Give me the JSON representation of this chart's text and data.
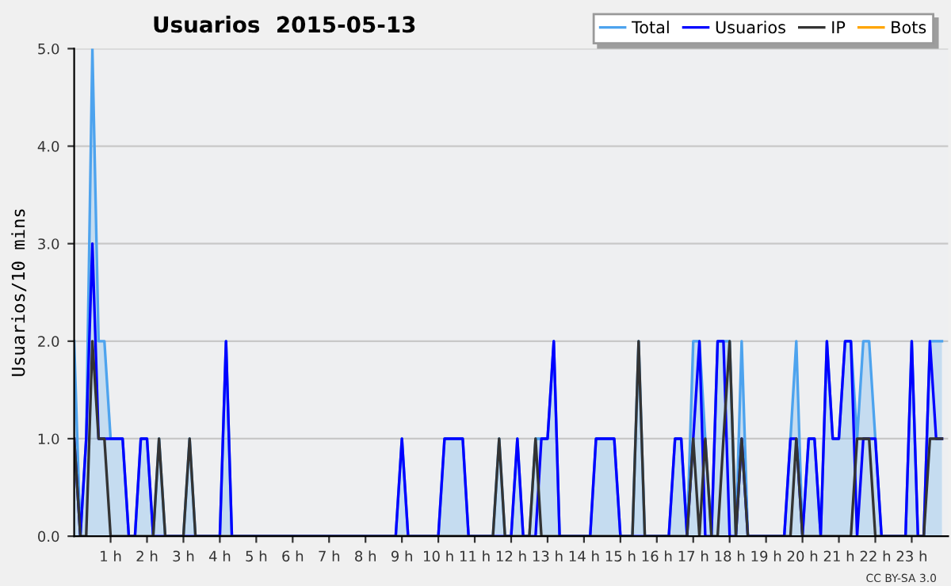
{
  "chart_data": {
    "type": "line",
    "title": "Usuarios  2015-05-13",
    "ylabel": "Usuarios/10 mins",
    "annotations": [
      "CC BY-SA 3.0"
    ],
    "x": [
      0,
      0.17,
      0.33,
      0.5,
      0.67,
      0.83,
      1,
      1.17,
      1.33,
      1.5,
      1.67,
      1.83,
      2,
      2.17,
      2.33,
      2.5,
      2.67,
      2.83,
      3,
      3.17,
      3.33,
      3.5,
      3.67,
      3.83,
      4,
      4.17,
      4.33,
      4.5,
      4.67,
      4.83,
      5,
      5.17,
      5.33,
      5.5,
      5.67,
      5.83,
      6,
      6.17,
      6.33,
      6.5,
      6.67,
      6.83,
      7,
      7.17,
      7.33,
      7.5,
      7.67,
      7.83,
      8,
      8.17,
      8.33,
      8.5,
      8.67,
      8.83,
      9,
      9.17,
      9.33,
      9.5,
      9.67,
      9.83,
      10,
      10.17,
      10.33,
      10.5,
      10.67,
      10.83,
      11,
      11.17,
      11.33,
      11.5,
      11.67,
      11.83,
      12,
      12.17,
      12.33,
      12.5,
      12.67,
      12.83,
      13,
      13.17,
      13.33,
      13.5,
      13.67,
      13.83,
      14,
      14.17,
      14.33,
      14.5,
      14.67,
      14.83,
      15,
      15.17,
      15.33,
      15.5,
      15.67,
      15.83,
      16,
      16.17,
      16.33,
      16.5,
      16.67,
      16.83,
      17,
      17.17,
      17.33,
      17.5,
      17.67,
      17.83,
      18,
      18.17,
      18.33,
      18.5,
      18.67,
      18.83,
      19,
      19.17,
      19.33,
      19.5,
      19.67,
      19.83,
      20,
      20.17,
      20.33,
      20.5,
      20.67,
      20.83,
      21,
      21.17,
      21.33,
      21.5,
      21.67,
      21.83,
      22,
      22.17,
      22.33,
      22.5,
      22.67,
      22.83,
      23,
      23.17,
      23.33,
      23.5,
      23.67,
      23.83
    ],
    "series": [
      {
        "name": "Total",
        "type": "area",
        "color": "#4da3ee",
        "values": [
          2,
          0,
          1,
          5,
          2,
          2,
          1,
          1,
          1,
          0,
          0,
          1,
          1,
          0,
          1,
          0,
          0,
          0,
          0,
          1,
          0,
          0,
          0,
          0,
          0,
          2,
          0,
          0,
          0,
          0,
          0,
          0,
          0,
          0,
          0,
          0,
          0,
          0,
          0,
          0,
          0,
          0,
          0,
          0,
          0,
          0,
          0,
          0,
          0,
          0,
          0,
          0,
          0,
          0,
          1,
          0,
          0,
          0,
          0,
          0,
          0,
          1,
          1,
          1,
          1,
          0,
          0,
          0,
          0,
          0,
          1,
          0,
          0,
          1,
          0,
          0,
          1,
          1,
          1,
          2,
          0,
          0,
          0,
          0,
          0,
          0,
          1,
          1,
          1,
          1,
          0,
          0,
          0,
          2,
          0,
          0,
          0,
          0,
          0,
          1,
          1,
          0,
          2,
          2,
          1,
          0,
          2,
          2,
          2,
          0,
          2,
          0,
          0,
          0,
          0,
          0,
          0,
          0,
          1,
          2,
          0,
          1,
          1,
          0,
          2,
          1,
          1,
          2,
          2,
          1,
          2,
          2,
          1,
          0,
          0,
          0,
          0,
          0,
          2,
          0,
          0,
          2,
          2,
          2
        ]
      },
      {
        "name": "Usuarios",
        "color": "#0000ff",
        "values": [
          1,
          0,
          1,
          3,
          1,
          1,
          1,
          1,
          1,
          0,
          0,
          1,
          1,
          0,
          0,
          0,
          0,
          0,
          0,
          0,
          0,
          0,
          0,
          0,
          0,
          2,
          0,
          0,
          0,
          0,
          0,
          0,
          0,
          0,
          0,
          0,
          0,
          0,
          0,
          0,
          0,
          0,
          0,
          0,
          0,
          0,
          0,
          0,
          0,
          0,
          0,
          0,
          0,
          0,
          1,
          0,
          0,
          0,
          0,
          0,
          0,
          1,
          1,
          1,
          1,
          0,
          0,
          0,
          0,
          0,
          0,
          0,
          0,
          1,
          0,
          0,
          0,
          1,
          1,
          2,
          0,
          0,
          0,
          0,
          0,
          0,
          1,
          1,
          1,
          1,
          0,
          0,
          0,
          0,
          0,
          0,
          0,
          0,
          0,
          1,
          1,
          0,
          1,
          2,
          0,
          0,
          2,
          2,
          0,
          0,
          1,
          0,
          0,
          0,
          0,
          0,
          0,
          0,
          1,
          1,
          0,
          1,
          1,
          0,
          2,
          1,
          1,
          2,
          2,
          0,
          1,
          1,
          1,
          0,
          0,
          0,
          0,
          0,
          2,
          0,
          0,
          2,
          1,
          1
        ]
      },
      {
        "name": "IP",
        "color": "#333333",
        "values": [
          1,
          0,
          0,
          2,
          1,
          1,
          0,
          0,
          0,
          0,
          0,
          0,
          0,
          0,
          1,
          0,
          0,
          0,
          0,
          1,
          0,
          0,
          0,
          0,
          0,
          0,
          0,
          0,
          0,
          0,
          0,
          0,
          0,
          0,
          0,
          0,
          0,
          0,
          0,
          0,
          0,
          0,
          0,
          0,
          0,
          0,
          0,
          0,
          0,
          0,
          0,
          0,
          0,
          0,
          0,
          0,
          0,
          0,
          0,
          0,
          0,
          0,
          0,
          0,
          0,
          0,
          0,
          0,
          0,
          0,
          1,
          0,
          0,
          0,
          0,
          0,
          1,
          0,
          0,
          0,
          0,
          0,
          0,
          0,
          0,
          0,
          0,
          0,
          0,
          0,
          0,
          0,
          0,
          2,
          0,
          0,
          0,
          0,
          0,
          0,
          0,
          0,
          1,
          0,
          1,
          0,
          0,
          1,
          2,
          0,
          1,
          0,
          0,
          0,
          0,
          0,
          0,
          0,
          0,
          1,
          0,
          0,
          0,
          0,
          0,
          0,
          0,
          0,
          0,
          1,
          1,
          1,
          0,
          0,
          0,
          0,
          0,
          0,
          0,
          0,
          0,
          1,
          1,
          1
        ]
      },
      {
        "name": "Bots",
        "color": "#ffa500",
        "values": [
          null,
          null,
          null,
          null,
          null,
          null,
          null,
          null,
          null,
          null,
          null,
          null,
          null,
          null,
          null,
          null,
          null,
          null,
          null,
          null,
          null,
          null,
          null,
          null,
          null,
          null,
          null,
          null,
          null,
          null,
          null,
          null,
          null,
          null,
          null,
          null,
          null,
          null,
          null,
          null,
          null,
          null,
          null,
          null,
          null,
          null,
          null,
          null,
          null,
          null,
          null,
          null,
          null,
          null,
          null,
          null,
          null,
          null,
          null,
          null,
          null,
          null,
          null,
          null,
          null,
          null,
          null,
          null,
          null,
          null,
          null,
          null,
          null,
          null,
          null,
          null,
          null,
          null,
          null,
          null,
          null,
          null,
          null,
          null,
          null,
          null,
          null,
          null,
          null,
          null,
          null,
          null,
          null,
          null,
          null,
          null,
          null,
          null,
          null,
          null,
          null,
          null,
          null,
          null,
          null,
          null,
          null,
          null,
          null,
          null,
          null,
          null,
          null,
          null,
          null,
          null,
          null,
          null,
          null,
          null,
          null,
          null,
          null,
          null,
          null,
          null,
          null,
          null,
          null,
          null,
          null,
          null,
          null,
          null,
          null,
          null,
          null,
          null,
          null,
          null,
          null,
          null,
          null,
          null
        ]
      }
    ],
    "xlim": [
      0,
      24
    ],
    "xticks": [
      {
        "value": 1,
        "label": "1 h"
      },
      {
        "value": 2,
        "label": "2 h"
      },
      {
        "value": 3,
        "label": "3 h"
      },
      {
        "value": 4,
        "label": "4 h"
      },
      {
        "value": 5,
        "label": "5 h"
      },
      {
        "value": 6,
        "label": "6 h"
      },
      {
        "value": 7,
        "label": "7 h"
      },
      {
        "value": 8,
        "label": "8 h"
      },
      {
        "value": 9,
        "label": "9 h"
      },
      {
        "value": 10,
        "label": "10 h"
      },
      {
        "value": 11,
        "label": "11 h"
      },
      {
        "value": 12,
        "label": "12 h"
      },
      {
        "value": 13,
        "label": "13 h"
      },
      {
        "value": 14,
        "label": "14 h"
      },
      {
        "value": 15,
        "label": "15 h"
      },
      {
        "value": 16,
        "label": "16 h"
      },
      {
        "value": 17,
        "label": "17 h"
      },
      {
        "value": 18,
        "label": "18 h"
      },
      {
        "value": 19,
        "label": "19 h"
      },
      {
        "value": 20,
        "label": "20 h"
      },
      {
        "value": 21,
        "label": "21 h"
      },
      {
        "value": 22,
        "label": "22 h"
      },
      {
        "value": 23,
        "label": "23 h"
      }
    ],
    "ylim": [
      0,
      5
    ],
    "yticks": [
      {
        "value": 0,
        "label": "0.0"
      },
      {
        "value": 1,
        "label": "1.0"
      },
      {
        "value": 2,
        "label": "2.0"
      },
      {
        "value": 3,
        "label": "3.0"
      },
      {
        "value": 4,
        "label": "4.0"
      },
      {
        "value": 5,
        "label": "5.0"
      }
    ],
    "grid": "y",
    "legend": "top right",
    "marker": "none",
    "line_style": "solid"
  }
}
